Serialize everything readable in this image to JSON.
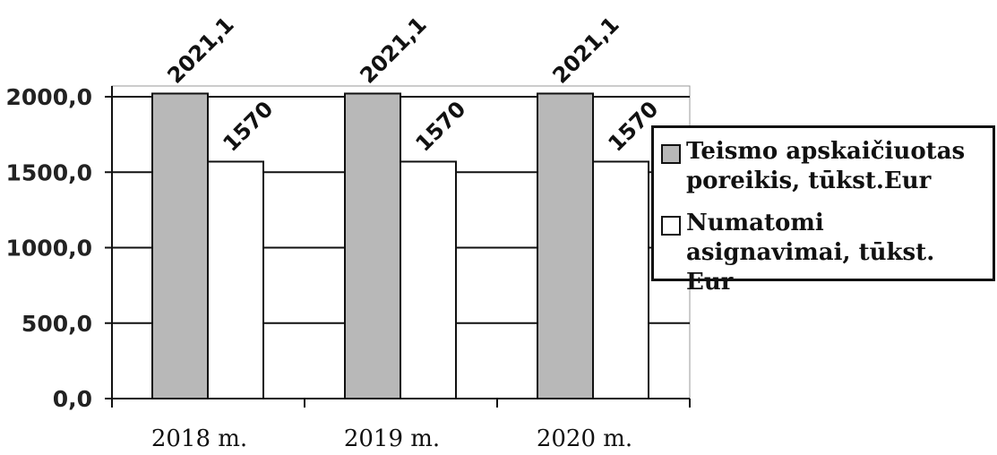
{
  "chart_data": {
    "type": "bar",
    "categories": [
      "2018 m.",
      "2019 m.",
      "2020 m."
    ],
    "series": [
      {
        "name": "Teismo apskaičiuotas poreikis, tūkst.Eur",
        "values": [
          2021.1,
          2021.1,
          2021.1
        ],
        "labels": [
          "2021,1",
          "2021,1",
          "2021,1"
        ],
        "color": "#b8b8b8"
      },
      {
        "name": "Numatomi asignavimai, tūkst. Eur",
        "values": [
          1570,
          1570,
          1570
        ],
        "labels": [
          "1570",
          "1570",
          "1570"
        ],
        "color": "#ffffff"
      }
    ],
    "y_ticks": [
      "0,0",
      "500,0",
      "1000,0",
      "1500,0",
      "2000,0"
    ],
    "ylim": [
      0,
      2000
    ],
    "grid": true,
    "legend_position": "right"
  }
}
